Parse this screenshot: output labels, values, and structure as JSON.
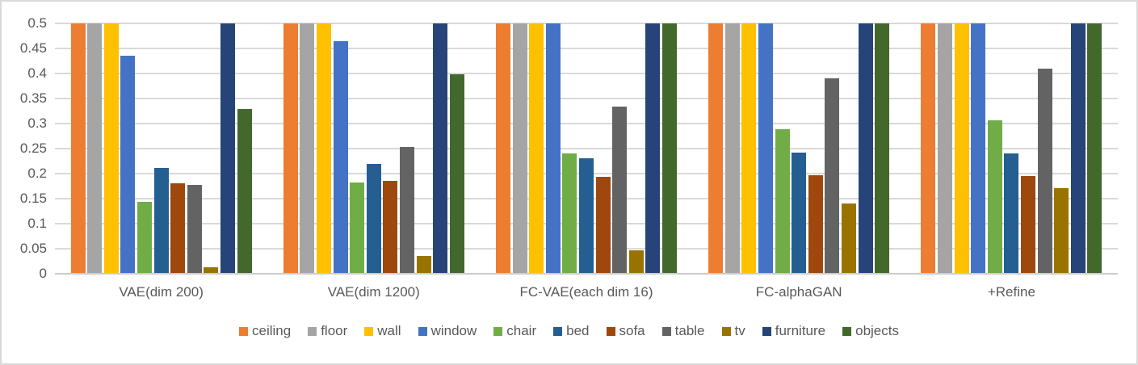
{
  "chart_data": {
    "type": "bar",
    "title": "",
    "xlabel": "",
    "ylabel": "",
    "ylim": [
      0,
      0.5
    ],
    "grid": true,
    "legend_position": "bottom",
    "ytick_labels": [
      "0",
      "0.05",
      "0.1",
      "0.15",
      "0.2",
      "0.25",
      "0.3",
      "0.35",
      "0.4",
      "0.45",
      "0.5"
    ],
    "ytick_values": [
      0,
      0.05,
      0.1,
      0.15,
      0.2,
      0.25,
      0.3,
      0.35,
      0.4,
      0.45,
      0.5
    ],
    "categories": [
      "VAE(dim 200)",
      "VAE(dim 1200)",
      "FC-VAE(each dim 16)",
      "FC-alphaGAN",
      "+Refine"
    ],
    "series": [
      {
        "name": "ceiling",
        "color": "#ED7D31",
        "values": [
          0.5,
          0.5,
          0.5,
          0.5,
          0.5
        ]
      },
      {
        "name": "floor",
        "color": "#A5A5A5",
        "values": [
          0.5,
          0.5,
          0.5,
          0.5,
          0.5
        ]
      },
      {
        "name": "wall",
        "color": "#FFC000",
        "values": [
          0.5,
          0.5,
          0.5,
          0.5,
          0.5
        ]
      },
      {
        "name": "window",
        "color": "#4472C4",
        "values": [
          0.435,
          0.465,
          0.5,
          0.5,
          0.5
        ]
      },
      {
        "name": "chair",
        "color": "#70AD47",
        "values": [
          0.144,
          0.183,
          0.241,
          0.289,
          0.306
        ]
      },
      {
        "name": "bed",
        "color": "#255E91",
        "values": [
          0.211,
          0.219,
          0.23,
          0.242,
          0.241
        ]
      },
      {
        "name": "sofa",
        "color": "#9E480E",
        "values": [
          0.18,
          0.185,
          0.194,
          0.196,
          0.195
        ]
      },
      {
        "name": "table",
        "color": "#636363",
        "values": [
          0.178,
          0.254,
          0.334,
          0.391,
          0.409
        ]
      },
      {
        "name": "tv",
        "color": "#997300",
        "values": [
          0.013,
          0.035,
          0.046,
          0.141,
          0.171
        ]
      },
      {
        "name": "furniture",
        "color": "#264478",
        "values": [
          0.5,
          0.5,
          0.5,
          0.5,
          0.5
        ]
      },
      {
        "name": "objects",
        "color": "#43682B",
        "values": [
          0.329,
          0.399,
          0.5,
          0.5,
          0.5
        ]
      }
    ]
  },
  "colors": {
    "gridline": "#d9d9d9",
    "axis_line": "#cccccc",
    "text": "#595959",
    "background": "#ffffff",
    "border": "#d9d9d9"
  }
}
